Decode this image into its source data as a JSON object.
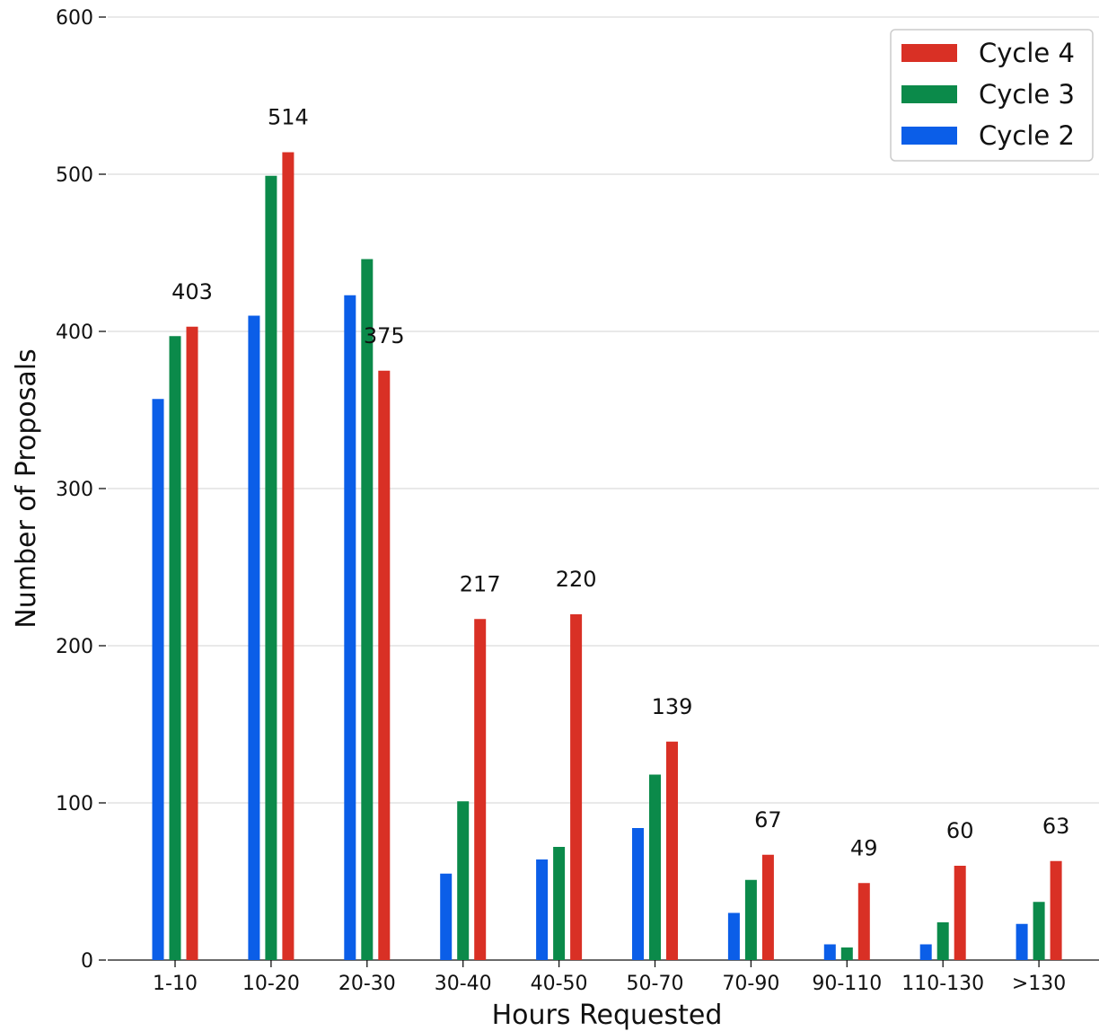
{
  "chart_data": {
    "type": "bar",
    "xlabel": "Hours Requested",
    "ylabel": "Number of Proposals",
    "ylim": [
      0,
      600
    ],
    "yticks": [
      0,
      100,
      200,
      300,
      400,
      500,
      600
    ],
    "grid": "horizontal",
    "legend_position": "top-right",
    "categories": [
      "1-10",
      "10-20",
      "20-30",
      "30-40",
      "40-50",
      "50-70",
      "70-90",
      "90-110",
      "110-130",
      ">130"
    ],
    "series": [
      {
        "name": "Cycle 2",
        "color": "#0b5ee8",
        "values": [
          357,
          410,
          423,
          55,
          64,
          84,
          30,
          10,
          10,
          23
        ]
      },
      {
        "name": "Cycle 3",
        "color": "#0b8a4a",
        "values": [
          397,
          499,
          446,
          101,
          72,
          118,
          51,
          8,
          24,
          37
        ]
      },
      {
        "name": "Cycle 4",
        "color": "#d93025",
        "values": [
          403,
          514,
          375,
          217,
          220,
          139,
          67,
          49,
          60,
          63
        ]
      }
    ],
    "data_labels": {
      "series": "Cycle 4",
      "texts": [
        "403",
        "514",
        "375",
        "217",
        "220",
        "139",
        "67",
        "49",
        "60",
        "63"
      ]
    },
    "legend_order": [
      "Cycle 4",
      "Cycle 3",
      "Cycle 2"
    ]
  }
}
